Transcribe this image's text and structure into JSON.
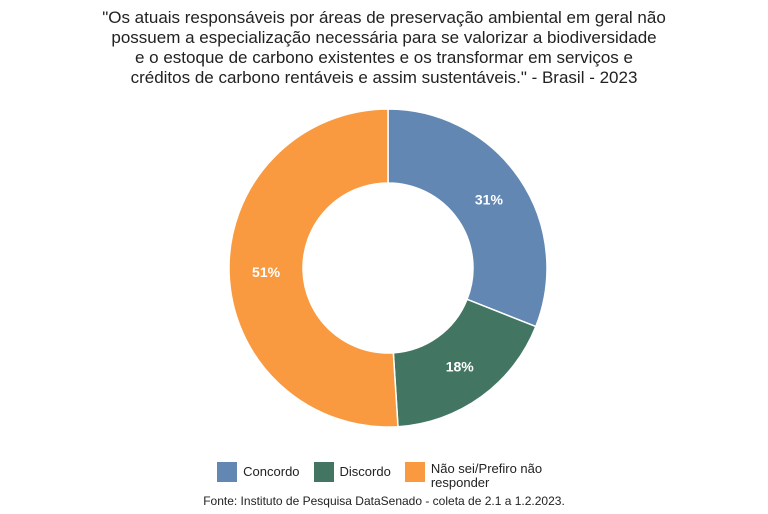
{
  "chart_data": {
    "type": "pie",
    "donut": true,
    "title_lines": [
      "\"Os atuais responsáveis por áreas de preservação ambiental em geral não",
      "possuem a especialização necessária para se valorizar a biodiversidade",
      "e o estoque de carbono existentes e os transformar em serviços e",
      "créditos de carbono rentáveis e assim sustentáveis.\" - Brasil - 2023"
    ],
    "slices": [
      {
        "label": "Concordo",
        "value": 31,
        "display": "31%",
        "color": "#6287b3"
      },
      {
        "label": "Discordo",
        "value": 18,
        "display": "18%",
        "color": "#427663"
      },
      {
        "label": "Não sei/Prefiro não responder",
        "value": 51,
        "display": "51%",
        "color": "#f99a40"
      }
    ],
    "legend_position": "bottom",
    "source": "Fonte: Instituto de Pesquisa DataSenado - coleta de 2.1 a 1.2.2023."
  }
}
